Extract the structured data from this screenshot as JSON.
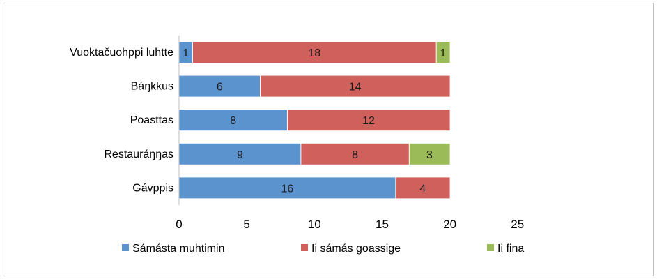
{
  "chart_data": {
    "type": "bar",
    "orientation": "horizontal",
    "stacked": true,
    "categories": [
      "Vuoktačuohppi luhtte",
      "Báŋkkus",
      "Poasttas",
      "Restauráŋŋas",
      "Gávppis"
    ],
    "series": [
      {
        "name": "Sámásta muhtimin",
        "color": "#5b93cf",
        "values": [
          1,
          6,
          8,
          9,
          16
        ]
      },
      {
        "name": "Ii sámás goassige",
        "color": "#cf605c",
        "values": [
          18,
          14,
          12,
          8,
          4
        ]
      },
      {
        "name": "Ii fina",
        "color": "#9bbb59",
        "values": [
          1,
          0,
          0,
          3,
          0
        ]
      }
    ],
    "xlim": [
      0,
      25
    ],
    "xticks": [
      0,
      5,
      10,
      15,
      20,
      25
    ],
    "grid": false,
    "legend_position": "bottom"
  }
}
